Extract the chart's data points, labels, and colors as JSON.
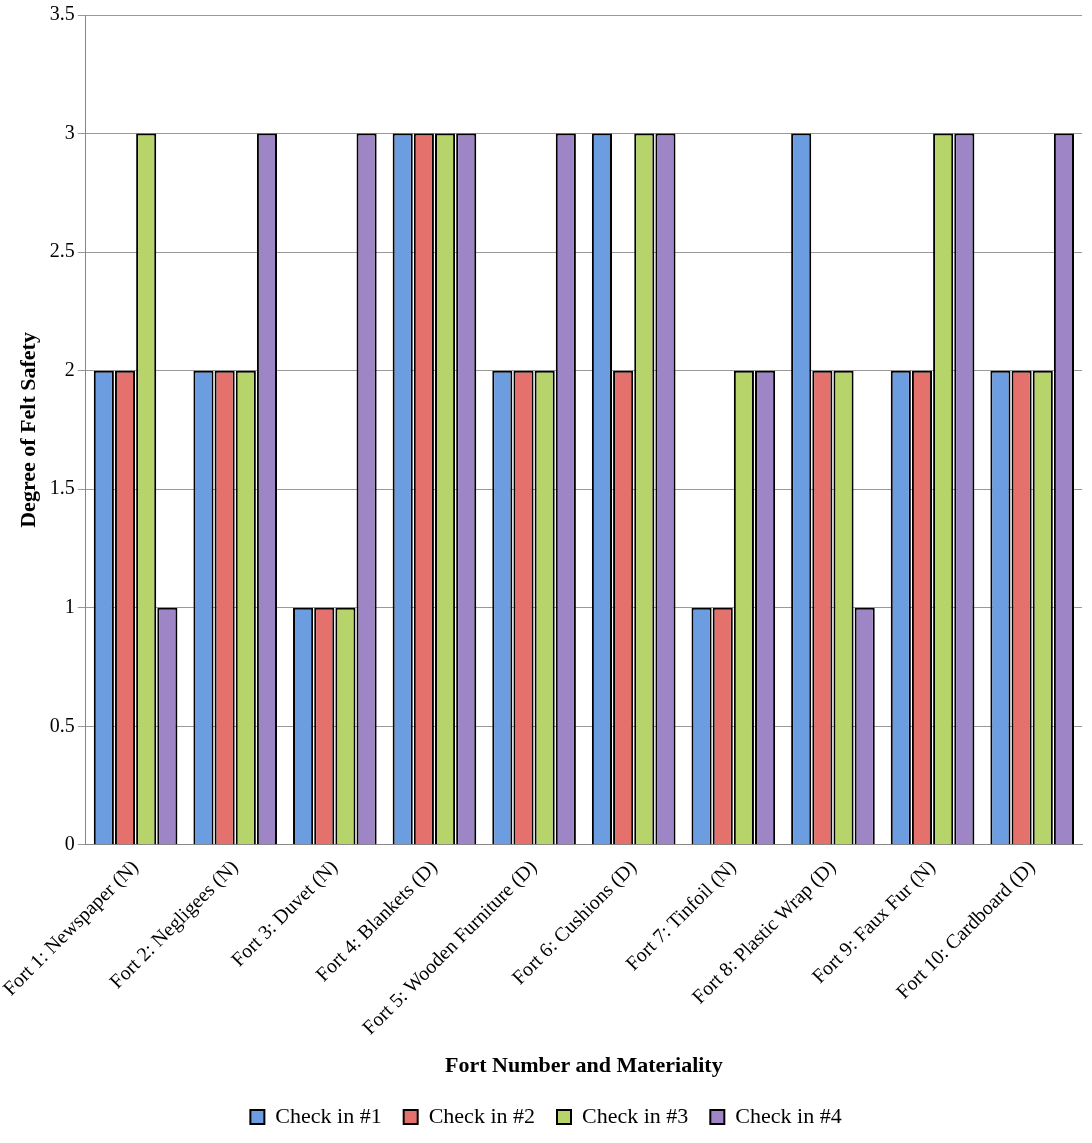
{
  "chart_data": {
    "type": "bar",
    "xlabel": "Fort Number and Materiality",
    "ylabel": "Degree of Felt Safety",
    "categories": [
      "Fort 1: Newspaper (N)",
      "Fort 2: Negligees (N)",
      "Fort 3: Duvet (N)",
      "Fort 4: Blankets (D)",
      "Fort 5: Wooden Furniture (D)",
      "Fort 6: Cushions (D)",
      "Fort 7: Tinfoil (N)",
      "Fort 8: Plastic Wrap (D)",
      "Fort 9: Faux Fur (N)",
      "Fort 10: Cardboard (D)"
    ],
    "series": [
      {
        "name": "Check in #1",
        "color": "#6b9de0",
        "values": [
          2,
          2,
          1,
          3,
          2,
          3,
          1,
          3,
          2,
          2
        ]
      },
      {
        "name": "Check in #2",
        "color": "#e5716d",
        "values": [
          2,
          2,
          1,
          3,
          2,
          2,
          1,
          2,
          2,
          2
        ]
      },
      {
        "name": "Check in #3",
        "color": "#b6d46a",
        "values": [
          3,
          2,
          1,
          3,
          2,
          3,
          2,
          2,
          3,
          2
        ]
      },
      {
        "name": "Check in #4",
        "color": "#9e85c6",
        "values": [
          1,
          3,
          3,
          3,
          3,
          3,
          2,
          1,
          3,
          3
        ]
      }
    ],
    "ylim": [
      0,
      3.5
    ],
    "yticks": [
      0,
      0.5,
      1,
      1.5,
      2,
      2.5,
      3,
      3.5
    ],
    "grid": "y",
    "legend": "bottom"
  }
}
